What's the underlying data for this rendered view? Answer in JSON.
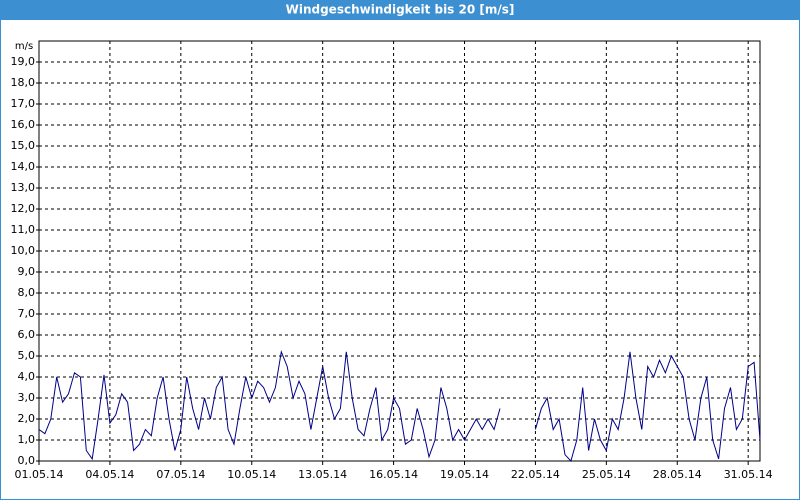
{
  "chart_data": {
    "type": "line",
    "title": "Windgeschwindigkeit bis 20 [m/s]",
    "y_unit": "m/s",
    "color": "#000088",
    "grid": true,
    "xlim": [
      1,
      31.5
    ],
    "ylim": [
      0,
      20
    ],
    "xticks": [
      {
        "value": 1,
        "label": "01.05.14"
      },
      {
        "value": 4,
        "label": "04.05.14"
      },
      {
        "value": 7,
        "label": "07.05.14"
      },
      {
        "value": 10,
        "label": "10.05.14"
      },
      {
        "value": 13,
        "label": "13.05.14"
      },
      {
        "value": 16,
        "label": "16.05.14"
      },
      {
        "value": 19,
        "label": "19.05.14"
      },
      {
        "value": 22,
        "label": "22.05.14"
      },
      {
        "value": 25,
        "label": "25.05.14"
      },
      {
        "value": 28,
        "label": "28.05.14"
      },
      {
        "value": 31,
        "label": "31.05.14"
      }
    ],
    "yticks": [
      {
        "value": 0,
        "label": "0,0"
      },
      {
        "value": 1,
        "label": "1,0"
      },
      {
        "value": 2,
        "label": "2,0"
      },
      {
        "value": 3,
        "label": "3,0"
      },
      {
        "value": 4,
        "label": "4,0"
      },
      {
        "value": 5,
        "label": "5,0"
      },
      {
        "value": 6,
        "label": "6,0"
      },
      {
        "value": 7,
        "label": "7,0"
      },
      {
        "value": 8,
        "label": "8,0"
      },
      {
        "value": 9,
        "label": "9,0"
      },
      {
        "value": 10,
        "label": "10,0"
      },
      {
        "value": 11,
        "label": "11,0"
      },
      {
        "value": 12,
        "label": "12,0"
      },
      {
        "value": 13,
        "label": "13,0"
      },
      {
        "value": 14,
        "label": "14,0"
      },
      {
        "value": 15,
        "label": "15,0"
      },
      {
        "value": 16,
        "label": "16,0"
      },
      {
        "value": 17,
        "label": "17,0"
      },
      {
        "value": 18,
        "label": "18,0"
      },
      {
        "value": 19,
        "label": "19,0"
      }
    ],
    "x": [
      1,
      1.25,
      1.5,
      1.75,
      2,
      2.25,
      2.5,
      2.75,
      3,
      3.25,
      3.5,
      3.75,
      4,
      4.25,
      4.5,
      4.75,
      5,
      5.25,
      5.5,
      5.75,
      6,
      6.25,
      6.5,
      6.75,
      7,
      7.25,
      7.5,
      7.75,
      8,
      8.25,
      8.5,
      8.75,
      9,
      9.25,
      9.5,
      9.75,
      10,
      10.25,
      10.5,
      10.75,
      11,
      11.25,
      11.5,
      11.75,
      12,
      12.25,
      12.5,
      12.75,
      13,
      13.25,
      13.5,
      13.75,
      14,
      14.25,
      14.5,
      14.75,
      15,
      15.25,
      15.5,
      15.75,
      16,
      16.25,
      16.5,
      16.75,
      17,
      17.25,
      17.5,
      17.75,
      18,
      18.25,
      18.5,
      18.75,
      19,
      19.25,
      19.5,
      19.75,
      20,
      20.25,
      20.5,
      20.75,
      21,
      21.25,
      21.5,
      21.75,
      22,
      22.25,
      22.5,
      22.75,
      23,
      23.25,
      23.5,
      23.75,
      24,
      24.25,
      24.5,
      24.75,
      25,
      25.25,
      25.5,
      25.75,
      26,
      26.25,
      26.5,
      26.75,
      27,
      27.25,
      27.5,
      27.75,
      28,
      28.25,
      28.5,
      28.75,
      29,
      29.25,
      29.5,
      29.75,
      30,
      30.25,
      30.5,
      30.75,
      31,
      31.25,
      31.5
    ],
    "values": [
      1.5,
      1.3,
      2.0,
      4.0,
      2.8,
      3.2,
      4.2,
      4.0,
      0.5,
      0.1,
      2.0,
      4.1,
      1.8,
      2.2,
      3.2,
      2.8,
      0.5,
      0.8,
      1.5,
      1.2,
      3.0,
      4.0,
      2.0,
      0.5,
      1.5,
      4.0,
      2.5,
      1.5,
      3.0,
      2.0,
      3.5,
      4.0,
      1.5,
      0.8,
      2.5,
      4.0,
      3.0,
      3.8,
      3.5,
      2.8,
      3.5,
      5.2,
      4.5,
      3.0,
      3.8,
      3.2,
      1.5,
      3.0,
      4.5,
      3.0,
      2.0,
      2.5,
      5.2,
      3.0,
      1.5,
      1.2,
      2.5,
      3.5,
      1.0,
      1.5,
      3.0,
      2.5,
      0.8,
      1.0,
      2.5,
      1.5,
      0.2,
      1.0,
      3.5,
      2.5,
      1.0,
      1.5,
      1.0,
      1.5,
      2.0,
      1.5,
      2.0,
      1.5,
      2.5,
      null,
      null,
      null,
      null,
      null,
      1.5,
      2.5,
      3.0,
      1.5,
      2.0,
      0.3,
      0.0,
      1.0,
      3.5,
      0.5,
      2.0,
      1.0,
      0.5,
      2.0,
      1.5,
      3.0,
      5.2,
      3.0,
      1.5,
      4.5,
      4.0,
      4.8,
      4.2,
      5.0,
      4.5,
      4.0,
      2.0,
      1.0,
      3.0,
      4.0,
      1.0,
      0.1,
      2.5,
      3.5,
      1.5,
      2.0,
      4.5,
      4.7,
      1.0
    ]
  }
}
